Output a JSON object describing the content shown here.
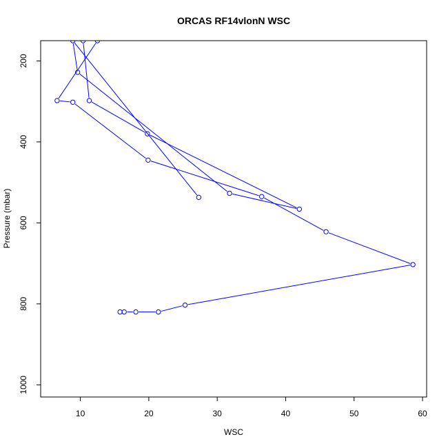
{
  "chart_data": {
    "type": "line",
    "title": "ORCAS RF14vlonN WSC",
    "xlabel": "WSC",
    "ylabel": "Pressure (mbar)",
    "xlim": [
      4.2,
      60.6
    ],
    "ylim": [
      1030,
      150
    ],
    "y_reversed": true,
    "x_ticks": [
      10,
      20,
      30,
      40,
      50,
      60
    ],
    "y_ticks": [
      200,
      400,
      600,
      800,
      1000
    ],
    "grid": false,
    "legend": "none",
    "color": "#0000ff",
    "series": [
      {
        "x": [
          15.8,
          16.4,
          18.1,
          21.4,
          25.3,
          58.6,
          45.9,
          36.5,
          19.9,
          8.9,
          6.6,
          12.5,
          10.4,
          11.3,
          19.8,
          42.0,
          31.8,
          9.6,
          8.9,
          27.3
        ],
        "y": [
          820,
          820,
          820,
          820,
          803,
          703,
          622,
          535,
          445,
          302,
          298,
          150,
          150,
          298,
          380,
          566,
          527,
          228,
          150,
          537
        ]
      }
    ]
  }
}
